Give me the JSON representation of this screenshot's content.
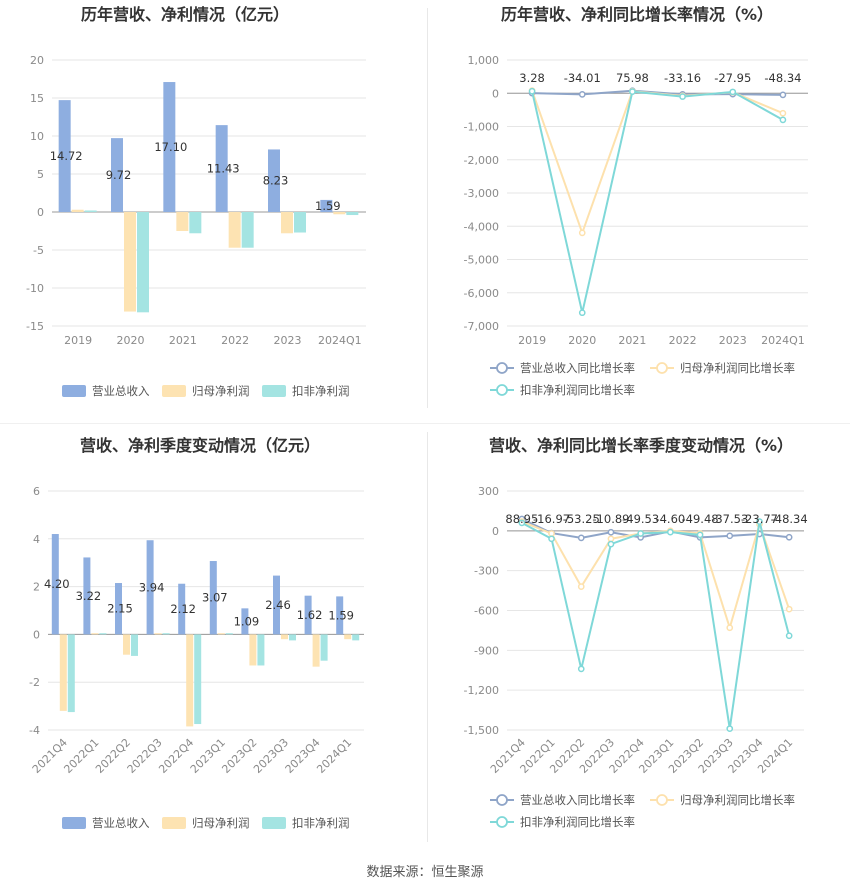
{
  "source_label": "数据来源：恒生聚源",
  "colors": {
    "revenue": "#8eaee0",
    "parent_net": "#fde3b2",
    "deduct_net": "#a4e4e2",
    "revenue_line": "#8fa5c8",
    "parent_line": "#fde1ad",
    "deduct_line": "#7fd8d8",
    "grid": "#e6e6e6",
    "axis": "#999999"
  },
  "chart_data": [
    {
      "type": "bar",
      "title": "历年营收、净利情况（亿元）",
      "categories": [
        "2019",
        "2020",
        "2021",
        "2022",
        "2023",
        "2024Q1"
      ],
      "ylim": [
        -15,
        20
      ],
      "yticks": [
        -15,
        -10,
        -5,
        0,
        5,
        10,
        15,
        20
      ],
      "series": [
        {
          "name": "营业总收入",
          "values": [
            14.72,
            9.72,
            17.1,
            11.43,
            8.23,
            1.59
          ],
          "labels": [
            "14.72",
            "9.72",
            "17.10",
            "11.43",
            "8.23",
            "1.59"
          ]
        },
        {
          "name": "归母净利润",
          "values": [
            0.3,
            -13.1,
            -2.5,
            -4.7,
            -2.8,
            -0.3
          ]
        },
        {
          "name": "扣非净利润",
          "values": [
            0.2,
            -13.2,
            -2.8,
            -4.7,
            -2.7,
            -0.4
          ]
        }
      ],
      "legend": "bottom"
    },
    {
      "type": "line",
      "title": "历年营收、净利同比增长率情况（%）",
      "categories": [
        "2019",
        "2020",
        "2021",
        "2022",
        "2023",
        "2024Q1"
      ],
      "ylim": [
        -7000,
        1000
      ],
      "yticks": [
        -7000,
        -6000,
        -5000,
        -4000,
        -3000,
        -2000,
        -1000,
        0,
        1000
      ],
      "ytick_labels": [
        "-7,000",
        "-6,000",
        "-5,000",
        "-4,000",
        "-3,000",
        "-2,000",
        "-1,000",
        "0",
        "1,000"
      ],
      "series": [
        {
          "name": "营业总收入同比增长率",
          "values": [
            3.28,
            -34.01,
            75.98,
            -33.16,
            -27.95,
            -48.34
          ],
          "labels": [
            "3.28",
            "-34.01",
            "75.98",
            "-33.16",
            "-27.95",
            "-48.34"
          ]
        },
        {
          "name": "归母净利润同比增长率",
          "values": [
            80,
            -4200,
            60,
            -80,
            30,
            -600
          ]
        },
        {
          "name": "扣非净利润同比增长率",
          "values": [
            60,
            -6600,
            50,
            -100,
            40,
            -800
          ]
        }
      ],
      "legend": "bottom"
    },
    {
      "type": "bar",
      "title": "营收、净利季度变动情况（亿元）",
      "categories": [
        "2021Q4",
        "2022Q1",
        "2022Q2",
        "2022Q3",
        "2022Q4",
        "2023Q1",
        "2023Q2",
        "2023Q3",
        "2023Q4",
        "2024Q1"
      ],
      "ylim": [
        -4,
        6
      ],
      "yticks": [
        -4,
        -2,
        0,
        2,
        4,
        6
      ],
      "series": [
        {
          "name": "营业总收入",
          "values": [
            4.2,
            3.22,
            2.15,
            3.94,
            2.12,
            3.07,
            1.09,
            2.46,
            1.62,
            1.59
          ],
          "labels": [
            "4.20",
            "3.22",
            "2.15",
            "3.94",
            "2.12",
            "3.07",
            "1.09",
            "2.46",
            "1.62",
            "1.59"
          ]
        },
        {
          "name": "归母净利润",
          "values": [
            -3.2,
            0.05,
            -0.85,
            0.05,
            -3.85,
            0.05,
            -1.3,
            -0.2,
            -1.35,
            -0.2
          ]
        },
        {
          "name": "扣非净利润",
          "values": [
            -3.25,
            0.05,
            -0.9,
            0.05,
            -3.75,
            0.05,
            -1.3,
            -0.25,
            -1.1,
            -0.25
          ]
        }
      ],
      "legend": "bottom"
    },
    {
      "type": "line",
      "title": "营收、净利同比增长率季度变动情况（%）",
      "categories": [
        "2021Q4",
        "2022Q1",
        "2022Q2",
        "2022Q3",
        "2022Q4",
        "2023Q1",
        "2023Q2",
        "2023Q3",
        "2023Q4",
        "2024Q1"
      ],
      "ylim": [
        -1500,
        300
      ],
      "yticks": [
        -1500,
        -1200,
        -900,
        -600,
        -300,
        0,
        300
      ],
      "ytick_labels": [
        "-1,500",
        "-1,200",
        "-900",
        "-600",
        "-300",
        "0",
        "300"
      ],
      "series": [
        {
          "name": "营业总收入同比增长率",
          "values": [
            88.95,
            -16.97,
            -53.25,
            -10.89,
            -49.53,
            -4.6,
            -49.48,
            -37.53,
            -23.77,
            -48.34
          ],
          "labels": [
            "88.95",
            "-16.97",
            "-53.25",
            "-10.89",
            "-49.53",
            "-4.60",
            "-49.48",
            "-37.53",
            "-23.77",
            "-48.34"
          ]
        },
        {
          "name": "归母净利润同比增长率",
          "values": [
            70,
            -20,
            -420,
            -60,
            -20,
            0,
            -20,
            -730,
            50,
            -590
          ]
        },
        {
          "name": "扣非净利润同比增长率",
          "values": [
            60,
            -60,
            -1040,
            -100,
            -20,
            -10,
            -30,
            -1490,
            70,
            -790
          ]
        }
      ],
      "legend": "bottom"
    }
  ]
}
